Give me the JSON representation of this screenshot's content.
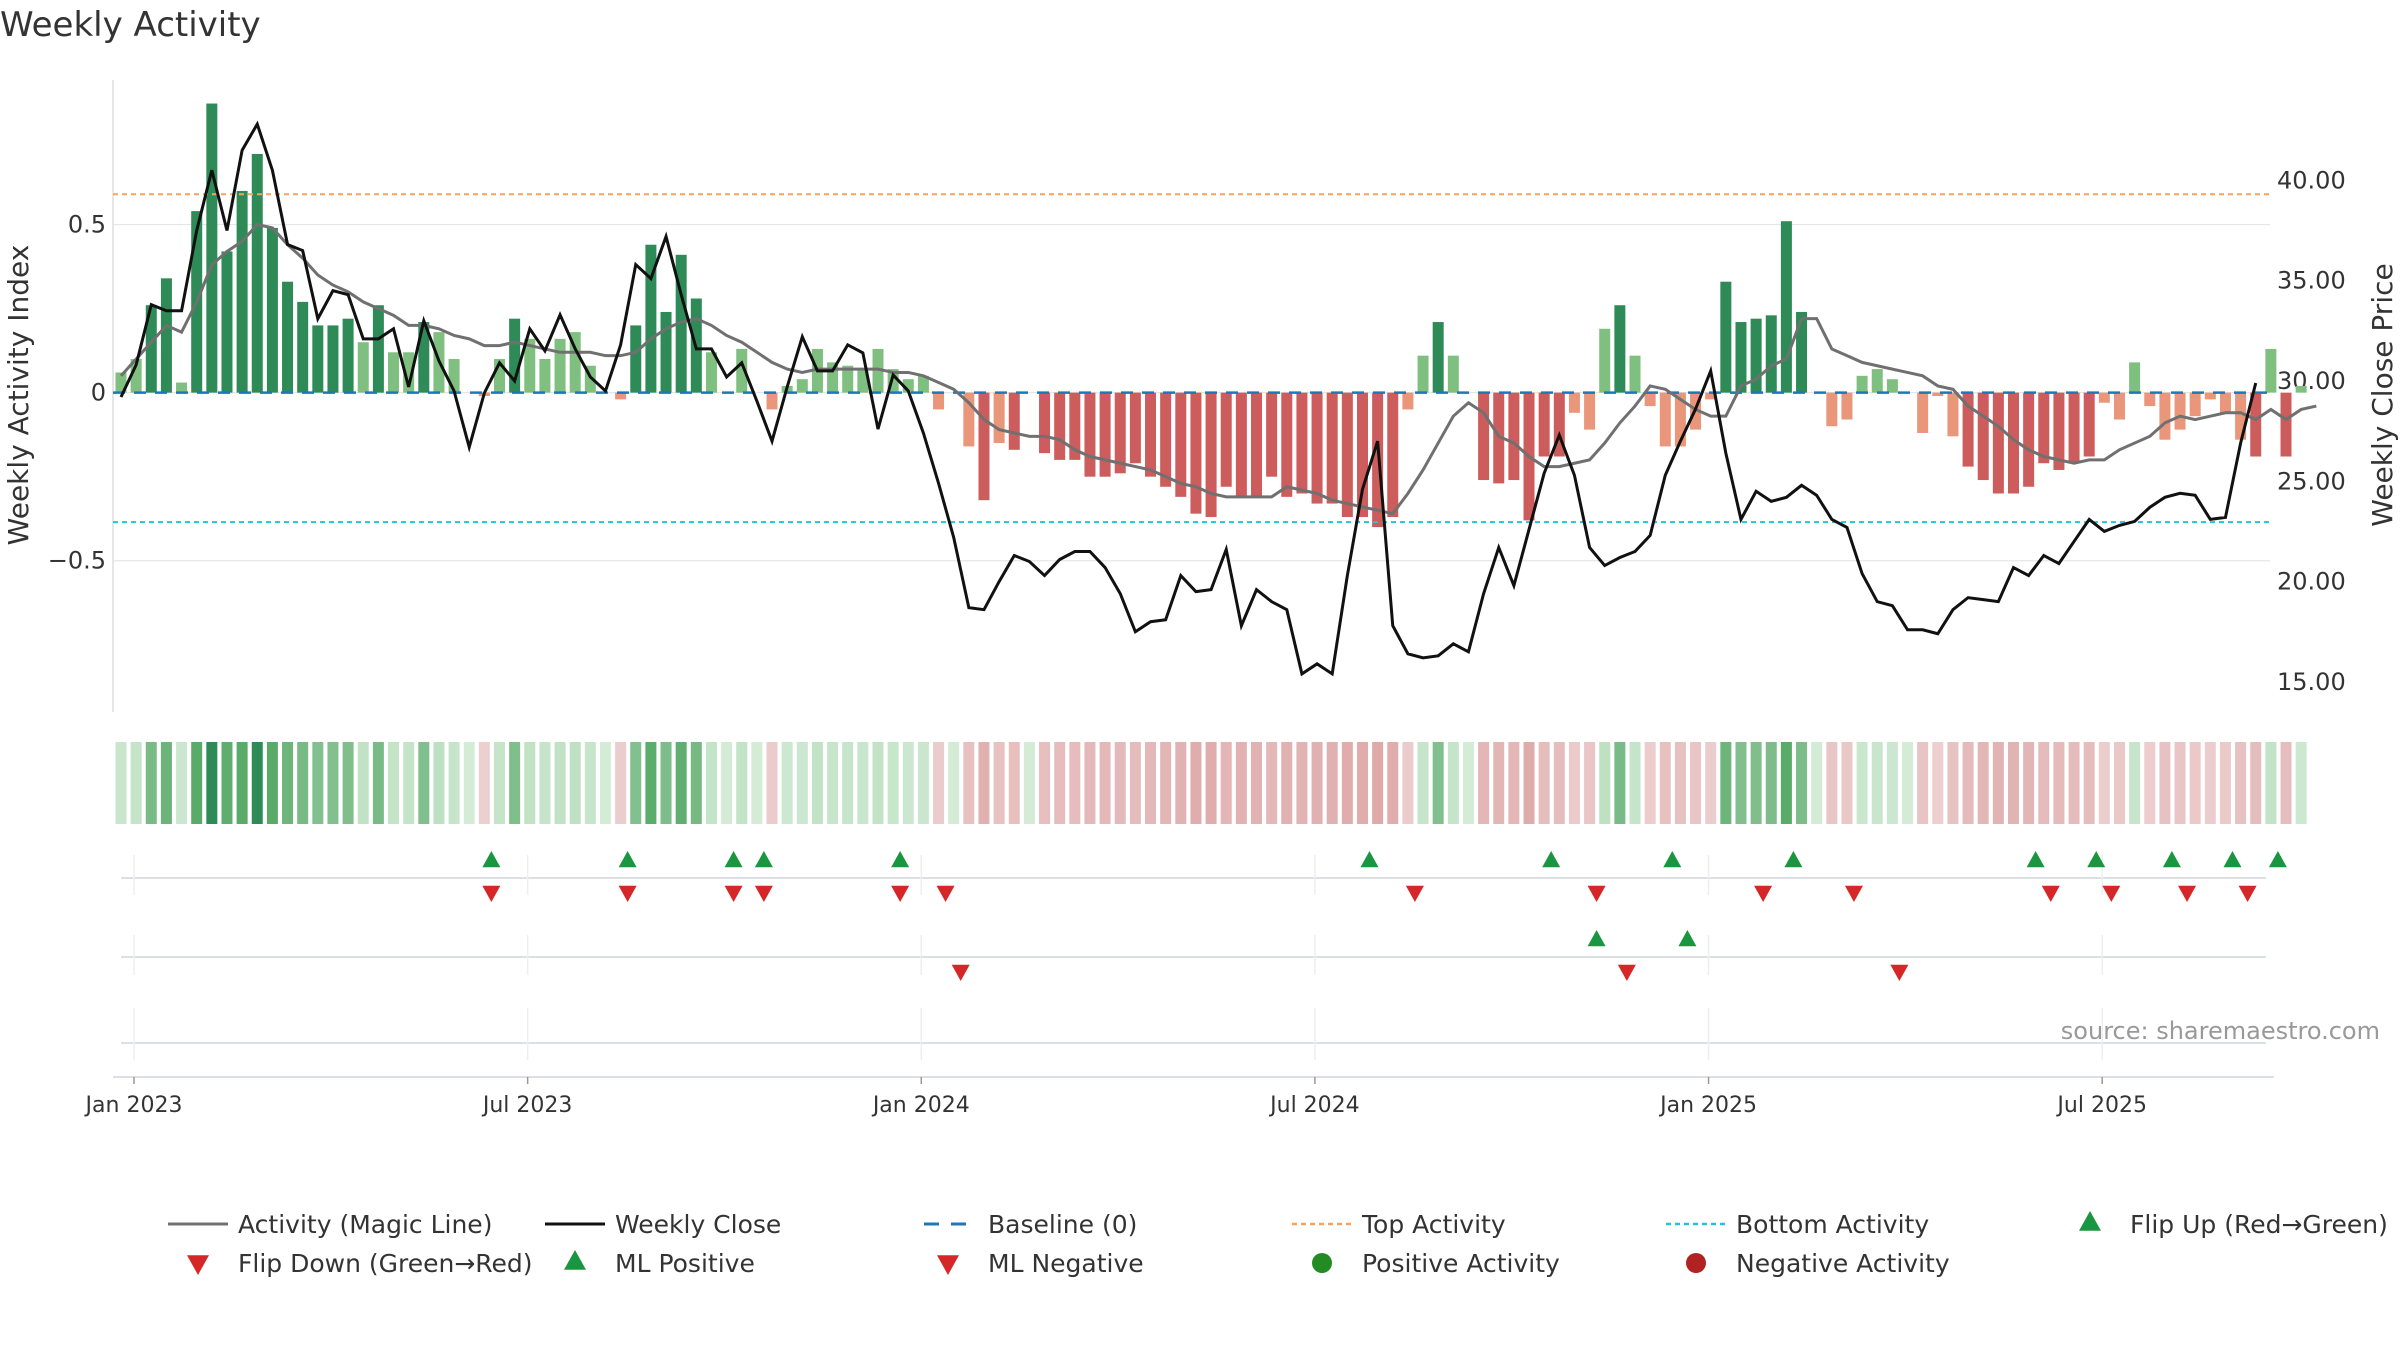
{
  "chart_data": {
    "type": "bar",
    "title": "Weekly Activity",
    "source": "source: sharemaestro.com",
    "ylabel_left": "Weekly Activity Index",
    "ylabel_right": "Weekly Close Price",
    "left_axis": {
      "range": [
        -0.95,
        0.93
      ],
      "ticks": [
        0.5,
        0,
        -0.5
      ],
      "tick_labels": [
        "0.5",
        "0",
        "−0.5"
      ]
    },
    "right_axis": {
      "range": [
        13.5,
        45.0
      ],
      "ticks": [
        40,
        35,
        30,
        25,
        20,
        15
      ],
      "tick_labels": [
        "40.00",
        "35.00",
        "30.00",
        "25.00",
        "20.00",
        "15.00"
      ]
    },
    "x_axis": {
      "start": "2023-01-02",
      "weeks": 143,
      "ticks": [
        0,
        26,
        52,
        78,
        104,
        130
      ],
      "tick_labels": [
        "Jan 2023",
        "Jul 2023",
        "Jan 2024",
        "Jul 2024",
        "Jan 2025",
        "Jul 2025"
      ]
    },
    "reference_lines": {
      "top_activity": 0.59,
      "bottom_activity": -0.385,
      "baseline": 0
    },
    "activity": [
      0.06,
      0.1,
      0.26,
      0.34,
      0.03,
      0.54,
      0.86,
      0.42,
      0.6,
      0.71,
      0.49,
      0.33,
      0.27,
      0.2,
      0.2,
      0.22,
      0.15,
      0.26,
      0.12,
      0.12,
      0.21,
      0.18,
      0.1,
      0.0,
      -0.01,
      0.1,
      0.22,
      0.16,
      0.1,
      0.16,
      0.18,
      0.08,
      0.0,
      -0.02,
      0.2,
      0.44,
      0.24,
      0.41,
      0.28,
      0.12,
      0.0,
      0.13,
      0.0,
      -0.05,
      0.02,
      0.04,
      0.13,
      0.09,
      0.08,
      0.07,
      0.13,
      0.07,
      0.04,
      0.05,
      -0.05,
      0.0,
      -0.16,
      -0.32,
      -0.15,
      -0.17,
      -0.0,
      -0.18,
      -0.2,
      -0.2,
      -0.25,
      -0.25,
      -0.24,
      -0.21,
      -0.25,
      -0.28,
      -0.31,
      -0.36,
      -0.37,
      -0.28,
      -0.31,
      -0.31,
      -0.25,
      -0.31,
      -0.3,
      -0.33,
      -0.33,
      -0.37,
      -0.37,
      -0.4,
      -0.37,
      -0.05,
      0.11,
      0.21,
      0.11,
      0.0,
      -0.26,
      -0.27,
      -0.26,
      -0.38,
      -0.19,
      -0.19,
      -0.06,
      -0.11,
      0.19,
      0.26,
      0.11,
      -0.04,
      -0.16,
      -0.16,
      -0.11,
      -0.02,
      0.33,
      0.21,
      0.22,
      0.23,
      0.51,
      0.24,
      0.0,
      -0.1,
      -0.08,
      0.05,
      0.07,
      0.04,
      0.0,
      -0.12,
      -0.01,
      -0.13,
      -0.22,
      -0.26,
      -0.3,
      -0.3,
      -0.28,
      -0.21,
      -0.23,
      -0.21,
      -0.19,
      -0.03,
      -0.08,
      0.09,
      -0.04,
      -0.14,
      -0.11,
      -0.07,
      -0.02,
      -0.06,
      -0.14,
      -0.19,
      0.13,
      -0.19,
      0.02
    ],
    "magic_line": [
      0.05,
      0.1,
      0.15,
      0.2,
      0.18,
      0.27,
      0.38,
      0.42,
      0.45,
      0.5,
      0.49,
      0.44,
      0.4,
      0.35,
      0.32,
      0.3,
      0.27,
      0.25,
      0.23,
      0.2,
      0.2,
      0.19,
      0.17,
      0.16,
      0.14,
      0.14,
      0.15,
      0.14,
      0.13,
      0.12,
      0.12,
      0.12,
      0.11,
      0.11,
      0.12,
      0.16,
      0.19,
      0.21,
      0.22,
      0.2,
      0.17,
      0.15,
      0.12,
      0.09,
      0.07,
      0.06,
      0.07,
      0.07,
      0.07,
      0.07,
      0.07,
      0.06,
      0.06,
      0.05,
      0.03,
      0.01,
      -0.03,
      -0.08,
      -0.11,
      -0.12,
      -0.13,
      -0.13,
      -0.14,
      -0.17,
      -0.19,
      -0.2,
      -0.21,
      -0.22,
      -0.23,
      -0.25,
      -0.27,
      -0.28,
      -0.3,
      -0.31,
      -0.31,
      -0.31,
      -0.31,
      -0.28,
      -0.29,
      -0.3,
      -0.32,
      -0.33,
      -0.34,
      -0.35,
      -0.36,
      -0.3,
      -0.23,
      -0.15,
      -0.07,
      -0.03,
      -0.06,
      -0.13,
      -0.15,
      -0.19,
      -0.22,
      -0.22,
      -0.21,
      -0.2,
      -0.15,
      -0.09,
      -0.04,
      0.02,
      0.01,
      -0.02,
      -0.05,
      -0.07,
      -0.07,
      0.02,
      0.04,
      0.08,
      0.1,
      0.22,
      0.22,
      0.13,
      0.11,
      0.09,
      0.08,
      0.07,
      0.06,
      0.05,
      0.02,
      0.01,
      -0.04,
      -0.07,
      -0.1,
      -0.14,
      -0.17,
      -0.19,
      -0.2,
      -0.21,
      -0.2,
      -0.2,
      -0.17,
      -0.15,
      -0.13,
      -0.09,
      -0.07,
      -0.08,
      -0.07,
      -0.06,
      -0.06,
      -0.08,
      -0.05,
      -0.08,
      -0.05,
      -0.04
    ],
    "weekly_close": [
      29.2,
      30.8,
      33.8,
      33.5,
      33.5,
      37.5,
      40.5,
      37.5,
      41.5,
      42.8,
      40.5,
      36.8,
      36.5,
      33.1,
      34.5,
      34.3,
      32.1,
      32.1,
      32.6,
      29.7,
      33.0,
      31.0,
      29.5,
      26.7,
      29.4,
      30.9,
      30.0,
      32.6,
      31.5,
      33.3,
      31.6,
      30.2,
      29.5,
      31.8,
      35.8,
      35.1,
      37.2,
      34.3,
      31.6,
      31.6,
      30.2,
      30.9,
      29.0,
      27.0,
      29.7,
      32.2,
      30.5,
      30.5,
      31.8,
      31.4,
      27.6,
      30.3,
      29.5,
      27.4,
      24.9,
      22.2,
      18.7,
      18.6,
      20.0,
      21.3,
      21.0,
      20.3,
      21.1,
      21.5,
      21.5,
      20.7,
      19.4,
      17.5,
      18.0,
      18.1,
      20.3,
      19.5,
      19.6,
      21.6,
      17.8,
      19.6,
      19.0,
      18.6,
      15.4,
      15.9,
      15.4,
      20.3,
      24.6,
      27.0,
      17.8,
      16.4,
      16.2,
      16.3,
      16.9,
      16.5,
      19.4,
      21.7,
      19.8,
      22.6,
      25.4,
      27.3,
      25.3,
      21.7,
      20.8,
      21.2,
      21.5,
      22.3,
      25.3,
      27.0,
      28.6,
      30.5,
      26.4,
      23.1,
      24.5,
      24.0,
      24.2,
      24.8,
      24.3,
      23.1,
      22.7,
      20.4,
      19.0,
      18.8,
      17.6,
      17.6,
      17.4,
      18.6,
      19.2,
      19.1,
      19.0,
      20.7,
      20.3,
      21.3,
      20.9,
      22.0,
      23.1,
      22.5,
      22.8,
      23.0,
      23.7,
      24.2,
      24.4,
      24.3,
      23.1,
      23.2,
      26.9,
      29.9
    ],
    "strip_labels": {
      "sign_changes_level": [
        24,
        33,
        40,
        42,
        51,
        82,
        94,
        102,
        110,
        126,
        130,
        135,
        139,
        142
      ],
      "sign_changes_dn": [
        24,
        33,
        40,
        42,
        51,
        54,
        85,
        97,
        108,
        114,
        127,
        131,
        136,
        140
      ],
      "ml_up": [
        97,
        103
      ],
      "ml_down": [
        55,
        99,
        117
      ]
    },
    "legend": [
      "Activity (Magic Line)",
      "Weekly Close",
      "Baseline (0)",
      "Top Activity",
      "Bottom Activity",
      "Flip Up (Red→Green)",
      "Flip Down (Green→Red)",
      "ML Positive",
      "ML Negative",
      "Positive Activity",
      "Negative Activity"
    ],
    "colors": {
      "pos_strong": "#2e8b57",
      "pos_weak": "#7fbf7f",
      "neg_strong": "#cd5c5c",
      "neg_weak": "#e9967a",
      "magic_line": "#707070",
      "close": "#111111",
      "baseline": "#1f77b4",
      "top": "#f4a460",
      "bottom": "#22c4d8",
      "flip_up": "#1a9641",
      "flip_down": "#d62728",
      "pos_dot": "#228b22",
      "neg_dot": "#b22222"
    }
  }
}
